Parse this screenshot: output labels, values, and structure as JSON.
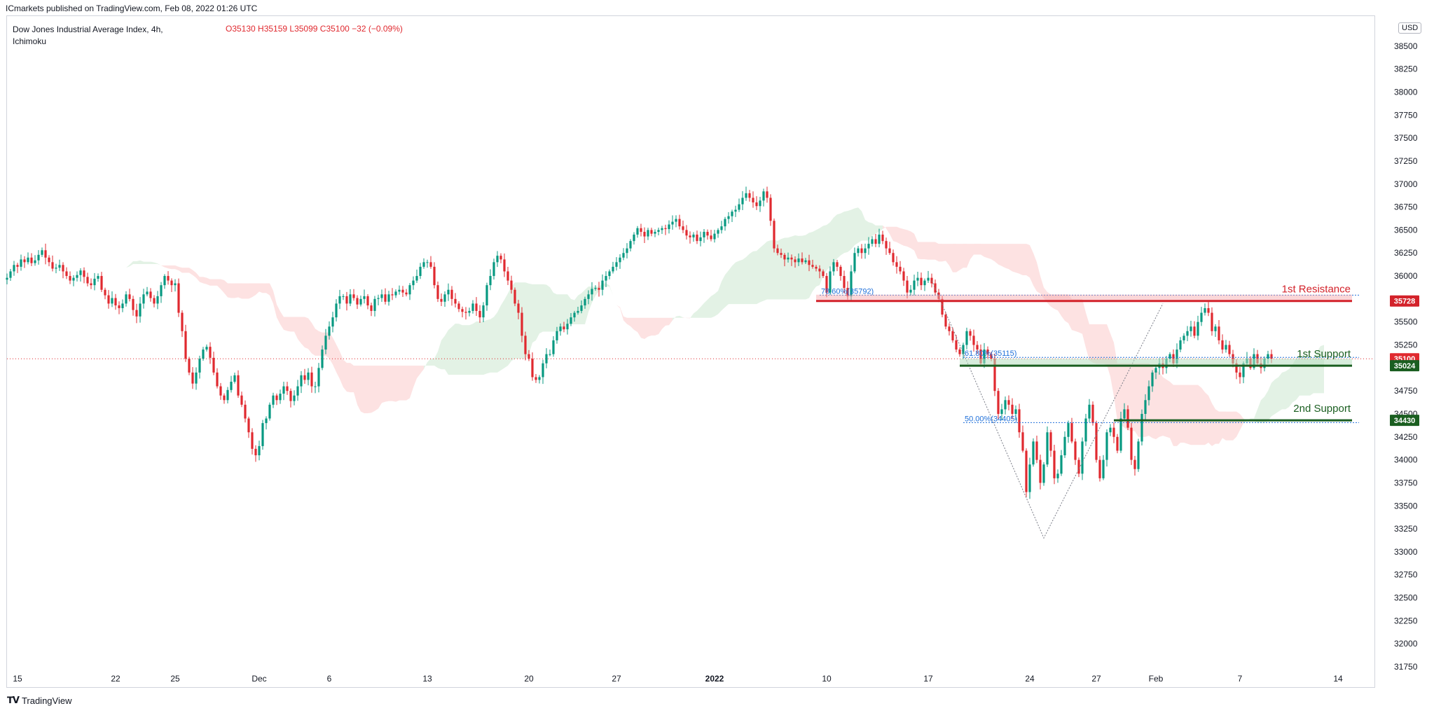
{
  "header": {
    "published": "ICmarkets published on TradingView.com, Feb 08, 2022 01:26 UTC"
  },
  "legend": {
    "title_line1": "Dow Jones Industrial Average Index, 4h,",
    "title_line2": "Ichimoku",
    "ohlc": "O35130  H35159  L35099  C35100  −32 (−0.09%)"
  },
  "currency": "USD",
  "footer": {
    "logo_text": "TradingView"
  },
  "colors": {
    "up": "#089981",
    "down": "#e0292f",
    "cloud_bull": "#e3f2e5",
    "cloud_bear": "#fde2e2",
    "resistance": "#d3222a",
    "support": "#1a5e20",
    "fib": "#1e6fd9"
  },
  "chart_data": {
    "type": "candlestick",
    "timeframe": "4h",
    "ylim": [
      31750,
      38750
    ],
    "y_ticks": [
      31750,
      32000,
      32250,
      32500,
      32750,
      33000,
      33250,
      33500,
      33750,
      34000,
      34250,
      34500,
      34750,
      35000,
      35250,
      35500,
      35750,
      36000,
      36250,
      36500,
      36750,
      37000,
      37250,
      37500,
      37750,
      38000,
      38250,
      38500
    ],
    "x_ticks": [
      {
        "label": "15",
        "i": 3
      },
      {
        "label": "22",
        "i": 31
      },
      {
        "label": "25",
        "i": 48
      },
      {
        "label": "Dec",
        "i": 72
      },
      {
        "label": "6",
        "i": 92
      },
      {
        "label": "13",
        "i": 120
      },
      {
        "label": "20",
        "i": 149
      },
      {
        "label": "27",
        "i": 174
      },
      {
        "label": "2022",
        "i": 202
      },
      {
        "label": "10",
        "i": 234
      },
      {
        "label": "17",
        "i": 263
      },
      {
        "label": "24",
        "i": 292
      },
      {
        "label": "27",
        "i": 311
      },
      {
        "label": "Feb",
        "i": 328
      },
      {
        "label": "7",
        "i": 352
      },
      {
        "label": "14",
        "i": 380
      }
    ],
    "close": [
      35980,
      36050,
      36120,
      36100,
      36180,
      36150,
      36200,
      36140,
      36170,
      36230,
      36280,
      36200,
      36150,
      36080,
      36090,
      36120,
      36050,
      36000,
      35950,
      35980,
      36010,
      36060,
      35990,
      35920,
      35900,
      35970,
      36000,
      35850,
      35790,
      35700,
      35760,
      35680,
      35650,
      35700,
      35800,
      35750,
      35630,
      35560,
      35700,
      35800,
      35830,
      35760,
      35700,
      35780,
      35900,
      36000,
      35950,
      35900,
      35920,
      35600,
      35400,
      35100,
      34950,
      34830,
      34950,
      35100,
      35200,
      35230,
      35110,
      34950,
      34800,
      34700,
      34650,
      34760,
      34850,
      34920,
      34700,
      34600,
      34450,
      34300,
      34120,
      34050,
      34150,
      34400,
      34450,
      34600,
      34700,
      34650,
      34720,
      34800,
      34750,
      34640,
      34700,
      34800,
      34920,
      34870,
      34950,
      34800,
      34800,
      35000,
      35200,
      35350,
      35450,
      35550,
      35700,
      35780,
      35780,
      35700,
      35800,
      35760,
      35690,
      35750,
      35780,
      35680,
      35620,
      35750,
      35760,
      35800,
      35720,
      35800,
      35790,
      35830,
      35850,
      35820,
      35800,
      35900,
      35950,
      36000,
      36100,
      36150,
      36150,
      36100,
      35900,
      35750,
      35720,
      35800,
      35850,
      35750,
      35700,
      35640,
      35610,
      35600,
      35620,
      35700,
      35620,
      35550,
      35680,
      35900,
      36000,
      36150,
      36220,
      36180,
      36050,
      35950,
      35850,
      35700,
      35600,
      35350,
      35150,
      35100,
      34900,
      34870,
      34900,
      35050,
      35150,
      35150,
      35300,
      35400,
      35450,
      35420,
      35480,
      35550,
      35600,
      35620,
      35680,
      35750,
      35800,
      35860,
      35870,
      35850,
      35950,
      36000,
      36050,
      36100,
      36150,
      36200,
      36250,
      36300,
      36380,
      36450,
      36520,
      36480,
      36430,
      36500,
      36460,
      36480,
      36500,
      36520,
      36510,
      36560,
      36590,
      36620,
      36540,
      36500,
      36440,
      36420,
      36450,
      36380,
      36420,
      36480,
      36440,
      36400,
      36460,
      36500,
      36540,
      36620,
      36650,
      36700,
      36720,
      36780,
      36850,
      36900,
      36850,
      36800,
      36760,
      36820,
      36920,
      36850,
      36600,
      36300,
      36250,
      36230,
      36180,
      36200,
      36180,
      36150,
      36190,
      36150,
      36170,
      36120,
      36100,
      36080,
      36050,
      36000,
      35820,
      36050,
      36150,
      36100,
      36000,
      35870,
      35780,
      36050,
      36250,
      36300,
      36250,
      36300,
      36350,
      36400,
      36350,
      36450,
      36380,
      36300,
      36250,
      36150,
      36100,
      36050,
      35950,
      35820,
      35850,
      35950,
      35980,
      35900,
      35950,
      35980,
      35920,
      35820,
      35750,
      35580,
      35450,
      35400,
      35300,
      35200,
      35150,
      35250,
      35400,
      35350,
      35250,
      35200,
      35050,
      35200,
      35150,
      35100,
      34750,
      34500,
      34550,
      34650,
      34600,
      34500,
      34550,
      34300,
      34100,
      33650,
      33950,
      34200,
      34000,
      33750,
      33950,
      34300,
      34100,
      33800,
      33850,
      34050,
      34250,
      34400,
      34200,
      34000,
      33850,
      34200,
      34450,
      34600,
      34400,
      34000,
      33800,
      34000,
      34300,
      34350,
      34250,
      34100,
      34450,
      34550,
      34350,
      34000,
      33900,
      34200,
      34500,
      34650,
      34800,
      34950,
      35000,
      35050,
      35000,
      35100,
      35150,
      35050,
      35200,
      35300,
      35350,
      35400,
      35450,
      35350,
      35500,
      35600,
      35650,
      35600,
      35400,
      35450,
      35300,
      35200,
      35250,
      35150,
      35050,
      34950,
      34900,
      35050,
      35100,
      35000,
      35150,
      35050,
      35000,
      35100,
      35150,
      35100
    ],
    "annotations": [
      {
        "kind": "resistance",
        "label": "1st Resistance",
        "price": 35728,
        "i_from": 231
      },
      {
        "kind": "support",
        "label": "1st Support",
        "price": 35024,
        "i_from": 272
      },
      {
        "kind": "support",
        "label": "2nd Support",
        "price": 34430,
        "i_from": 316
      }
    ],
    "fib_levels": [
      {
        "label": "78.60%(35792)",
        "price": 35792,
        "i_from": 232
      },
      {
        "label": "61.80%(35115)",
        "price": 35115,
        "i_from": 273
      },
      {
        "label": "50.00%(34405)",
        "price": 34405,
        "i_from": 273
      }
    ],
    "current_price": 35100,
    "price_labels": [
      {
        "value": "35728",
        "price": 35728,
        "color": "#d3222a"
      },
      {
        "value": "35100",
        "price": 35100,
        "color": "#e0292f"
      },
      {
        "value": "35024",
        "price": 35024,
        "color": "#1a5e20"
      },
      {
        "value": "34430",
        "price": 34430,
        "color": "#1a5e20"
      }
    ]
  }
}
